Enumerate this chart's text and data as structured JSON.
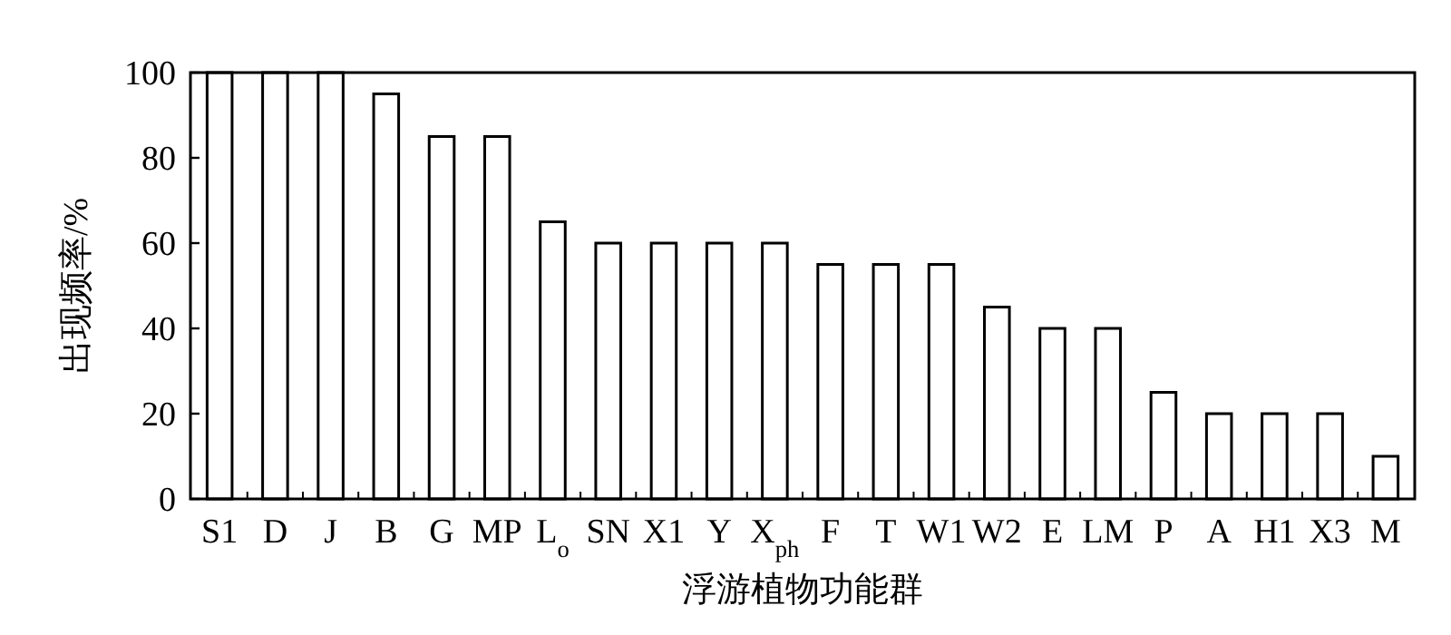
{
  "chart_data": {
    "type": "bar",
    "xlabel": "浮游植物功能群",
    "ylabel": "出现频率/%",
    "categories": [
      "S1",
      "D",
      "J",
      "B",
      "G",
      "MP",
      "L$_{o}$",
      "SN",
      "X1",
      "Y",
      "X$_{ph}$",
      "F",
      "T",
      "W1",
      "W2",
      "E",
      "LM",
      "P",
      "A",
      "H1",
      "X3",
      "M"
    ],
    "values": [
      100,
      100,
      100,
      95,
      85,
      85,
      65,
      60,
      60,
      60,
      60,
      55,
      55,
      55,
      45,
      40,
      40,
      25,
      20,
      20,
      20,
      10
    ],
    "color": "#ffffff",
    "ylim": [
      0,
      100
    ],
    "yticks": [
      0,
      20,
      40,
      60,
      80,
      100
    ],
    "grid": false
  }
}
